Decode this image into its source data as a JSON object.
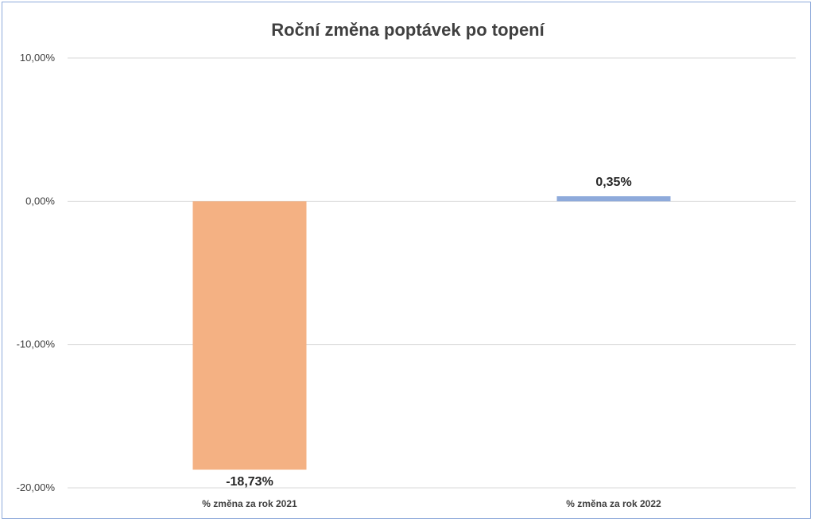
{
  "chart_data": {
    "type": "bar",
    "title": "Roční změna poptávek po topení",
    "categories": [
      "% změna za rok 2021",
      "% změna za rok 2022"
    ],
    "values": [
      -18.73,
      0.35
    ],
    "data_labels": [
      "-18,73%",
      "0,35%"
    ],
    "bar_colors": [
      "#f4b183",
      "#8eaadb"
    ],
    "ylim": [
      -20,
      10
    ],
    "yticks": [
      10,
      0,
      -10,
      -20
    ],
    "ytick_labels": [
      "10,00%",
      "0,00%",
      "-10,00%",
      "-20,00%"
    ],
    "xlabel": "",
    "ylabel": "",
    "grid": true,
    "legend": "none"
  },
  "colors": {
    "frame_border": "#8eaadb",
    "gridline": "#d9d9d9",
    "text": "#404040"
  }
}
